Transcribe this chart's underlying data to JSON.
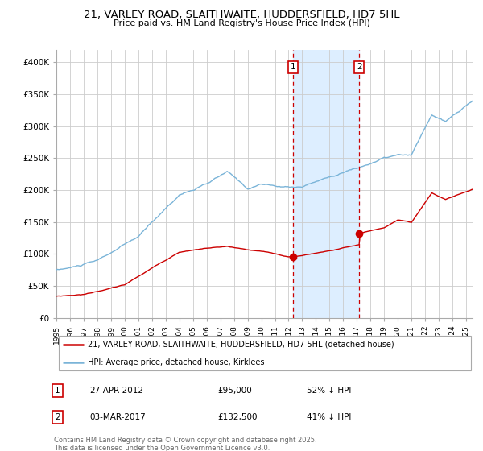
{
  "title_line1": "21, VARLEY ROAD, SLAITHWAITE, HUDDERSFIELD, HD7 5HL",
  "title_line2": "Price paid vs. HM Land Registry's House Price Index (HPI)",
  "legend_line1": "21, VARLEY ROAD, SLAITHWAITE, HUDDERSFIELD, HD7 5HL (detached house)",
  "legend_line2": "HPI: Average price, detached house, Kirklees",
  "annotation1_label": "1",
  "annotation1_date": "27-APR-2012",
  "annotation1_price": "£95,000",
  "annotation1_hpi": "52% ↓ HPI",
  "annotation2_label": "2",
  "annotation2_date": "03-MAR-2017",
  "annotation2_price": "£132,500",
  "annotation2_hpi": "41% ↓ HPI",
  "footnote": "Contains HM Land Registry data © Crown copyright and database right 2025.\nThis data is licensed under the Open Government Licence v3.0.",
  "hpi_color": "#7ab4d8",
  "price_color": "#cc0000",
  "shade_color": "#ddeeff",
  "dashed_color": "#cc0000",
  "annotation_box_color": "#cc0000",
  "ylim": [
    0,
    420000
  ],
  "yticks": [
    0,
    50000,
    100000,
    150000,
    200000,
    250000,
    300000,
    350000,
    400000
  ],
  "ytick_labels": [
    "£0",
    "£50K",
    "£100K",
    "£150K",
    "£200K",
    "£250K",
    "£300K",
    "£350K",
    "£400K"
  ],
  "xlim_start": 1995.0,
  "xlim_end": 2025.5,
  "purchase1_x": 2012.32,
  "purchase1_y": 95000,
  "purchase2_x": 2017.17,
  "purchase2_y": 132500,
  "background_color": "#ffffff",
  "grid_color": "#cccccc"
}
